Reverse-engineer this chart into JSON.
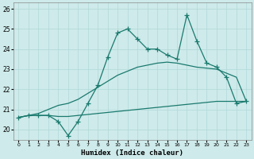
{
  "xlabel": "Humidex (Indice chaleur)",
  "bg_color": "#ceeaea",
  "grid_color": "#b8dada",
  "line_color": "#1a7a6e",
  "xlim": [
    -0.5,
    23.5
  ],
  "ylim": [
    19.5,
    26.3
  ],
  "yticks": [
    20,
    21,
    22,
    23,
    24,
    25,
    26
  ],
  "xticks": [
    0,
    1,
    2,
    3,
    4,
    5,
    6,
    7,
    8,
    9,
    10,
    11,
    12,
    13,
    14,
    15,
    16,
    17,
    18,
    19,
    20,
    21,
    22,
    23
  ],
  "line1_x": [
    0,
    1,
    2,
    3,
    4,
    5,
    6,
    7,
    8,
    9,
    10,
    11,
    12,
    13,
    14,
    15,
    16,
    17,
    18,
    19,
    20,
    21,
    22,
    23
  ],
  "line1_y": [
    20.6,
    20.7,
    20.7,
    20.7,
    20.65,
    20.65,
    20.7,
    20.75,
    20.8,
    20.85,
    20.9,
    20.95,
    21.0,
    21.05,
    21.1,
    21.15,
    21.2,
    21.25,
    21.3,
    21.35,
    21.4,
    21.4,
    21.4,
    21.4
  ],
  "line2_x": [
    0,
    1,
    2,
    3,
    4,
    5,
    6,
    7,
    8,
    9,
    10,
    11,
    12,
    13,
    14,
    15,
    16,
    17,
    18,
    19,
    20,
    21,
    22,
    23
  ],
  "line2_y": [
    20.6,
    20.7,
    20.8,
    21.0,
    21.2,
    21.3,
    21.5,
    21.8,
    22.1,
    22.4,
    22.7,
    22.9,
    23.1,
    23.2,
    23.3,
    23.35,
    23.3,
    23.2,
    23.1,
    23.05,
    23.0,
    22.8,
    22.6,
    21.4
  ],
  "line3_x": [
    0,
    1,
    2,
    3,
    4,
    5,
    6,
    7,
    8,
    9,
    10,
    11,
    12,
    13,
    14,
    15,
    16,
    17,
    18,
    19,
    20,
    21,
    22,
    23
  ],
  "line3_y": [
    20.6,
    20.7,
    20.7,
    20.7,
    20.4,
    19.7,
    20.4,
    21.3,
    22.2,
    23.6,
    24.8,
    25.0,
    24.5,
    24.0,
    24.0,
    23.7,
    23.5,
    25.7,
    24.4,
    23.3,
    23.1,
    22.6,
    21.3,
    21.4
  ]
}
